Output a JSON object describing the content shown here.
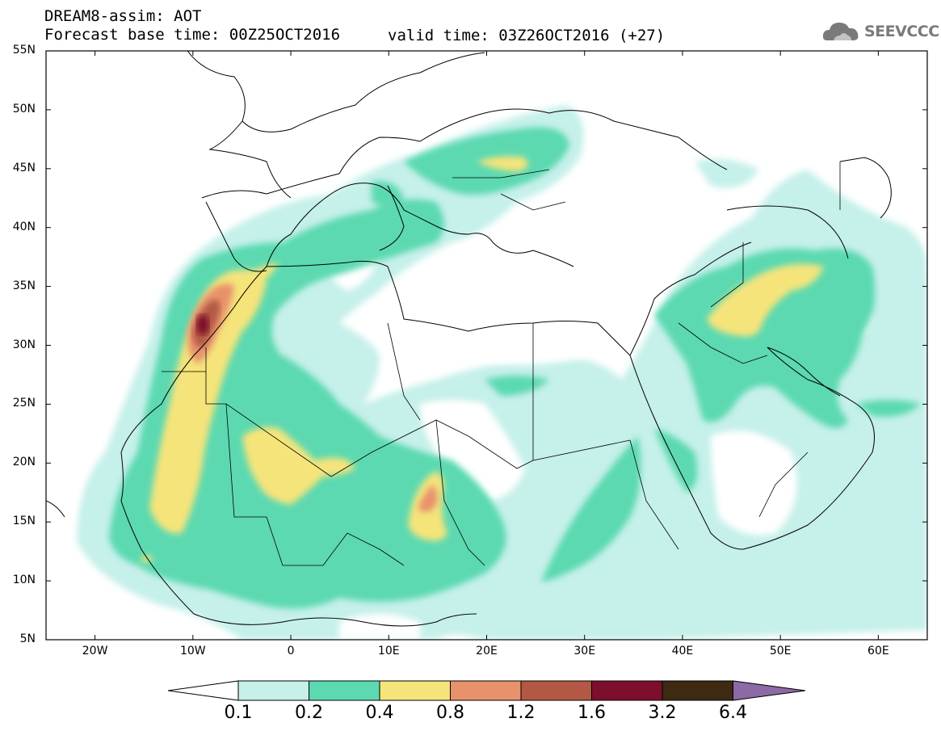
{
  "header": {
    "line1": "DREAM8-assim: AOT",
    "line2": "Forecast base time: 00Z25OCT2016",
    "valid": "valid time: 03Z26OCT2016 (+27)"
  },
  "logo": {
    "text": "SEEVCCC",
    "icon": "cloud-icon",
    "color": "#7a7a7a"
  },
  "map": {
    "lon_range": [
      -25,
      65
    ],
    "lat_range": [
      5,
      55
    ],
    "y_axis_labels": [
      "55N",
      "50N",
      "45N",
      "40N",
      "35N",
      "30N",
      "25N",
      "20N",
      "15N",
      "10N",
      "5N"
    ],
    "x_axis_labels": [
      "20W",
      "10W",
      "0",
      "10E",
      "20E",
      "30E",
      "40E",
      "50E",
      "60E"
    ]
  },
  "colorbar": {
    "colors": [
      "#c6f0ea",
      "#5cd9b1",
      "#f5e47a",
      "#e8926c",
      "#b25845",
      "#7d0f2c",
      "#3e2912"
    ],
    "below_color": "#ffffff",
    "above_color": "#8c6aa6",
    "labels": [
      "0.1",
      "0.2",
      "0.4",
      "0.8",
      "1.2",
      "1.6",
      "3.2",
      "6.4"
    ]
  }
}
